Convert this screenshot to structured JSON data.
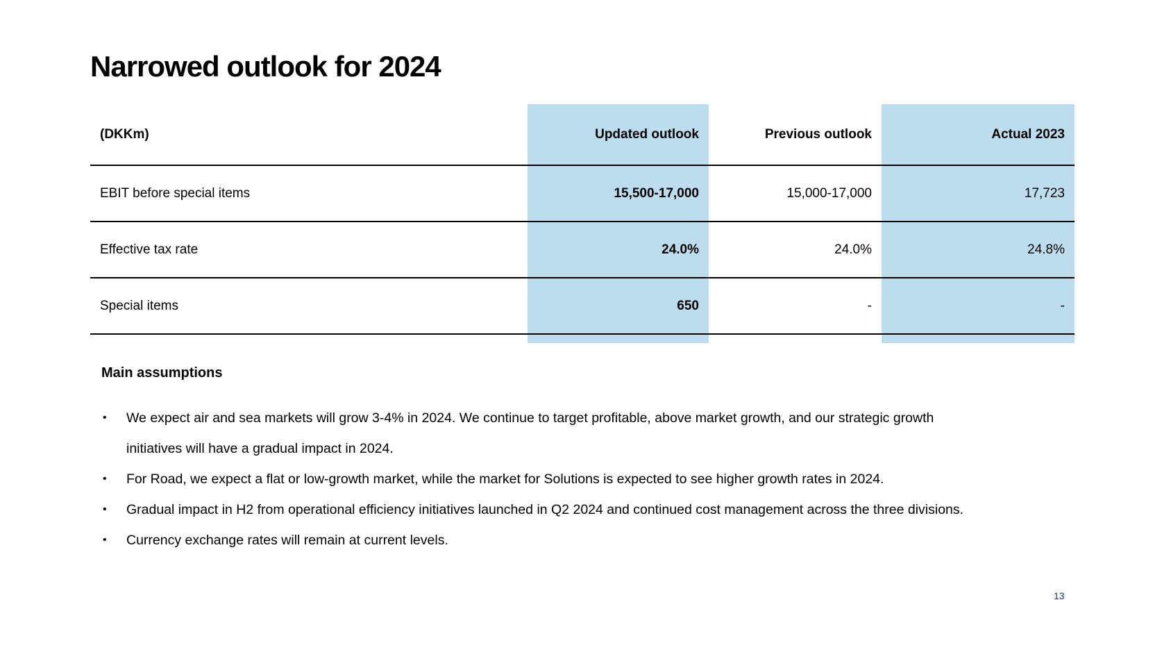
{
  "slide": {
    "title": "Narrowed outlook for 2024",
    "page_number": "13"
  },
  "colors": {
    "highlight": "#BDDCEE",
    "rule": "#000000",
    "text": "#000000",
    "page_number": "#1F3864"
  },
  "table": {
    "columns": [
      "(DKKm)",
      "Updated outlook",
      "Previous outlook",
      "Actual 2023"
    ],
    "highlighted_columns": [
      "Updated outlook",
      "Actual 2023"
    ],
    "rows": [
      {
        "label": "EBIT before special items",
        "updated": "15,500-17,000",
        "previous": "15,000-17,000",
        "actual": "17,723"
      },
      {
        "label": "Effective tax rate",
        "updated": "24.0%",
        "previous": "24.0%",
        "actual": "24.8%"
      },
      {
        "label": "Special items",
        "updated": "650",
        "previous": "-",
        "actual": "-"
      }
    ]
  },
  "assumptions": {
    "heading": "Main assumptions",
    "bullet_char": "•",
    "bullets": [
      {
        "lines": [
          "We expect air and sea markets will grow 3-4% in 2024. We continue to target profitable, above market growth, and our strategic growth",
          "initiatives will have a gradual impact in 2024."
        ]
      },
      {
        "lines": [
          "For Road, we expect a flat or low-growth market, while the market for Solutions is expected to see higher growth rates in 2024."
        ]
      },
      {
        "lines": [
          "Gradual impact in H2 from operational efficiency initiatives launched in Q2 2024 and continued cost management across the three divisions."
        ]
      },
      {
        "lines": [
          "Currency exchange rates will remain at current levels."
        ]
      }
    ]
  }
}
